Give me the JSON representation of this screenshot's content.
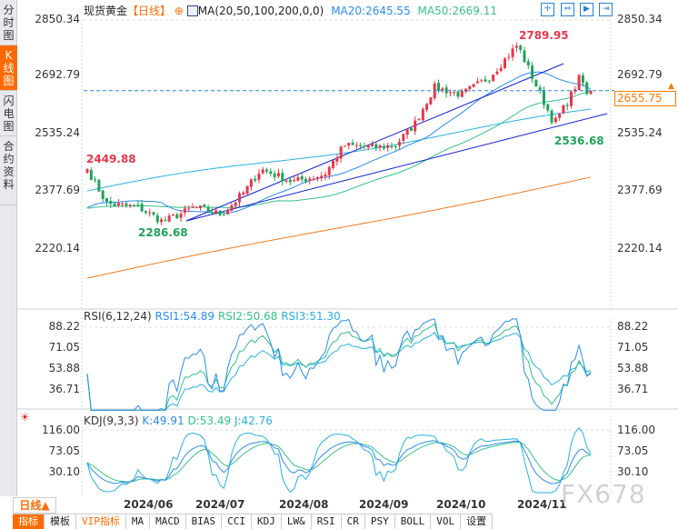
{
  "sidebar": {
    "tabs": [
      {
        "label": "分时图"
      },
      {
        "label": "K线图",
        "active": true
      },
      {
        "label": "闪电图"
      },
      {
        "label": "合约资料"
      }
    ]
  },
  "header": {
    "symbol": "现货黄金",
    "period": "【日线】",
    "ma_label": "MA(20,50,100,200,0,0)",
    "ma20": "MA20:2645.55",
    "ma50": "MA50:2669.11"
  },
  "toolbar_icons": [
    "crosshair-icon",
    "zoom-in-icon",
    "play-icon",
    "exit-icon"
  ],
  "price_axis": [
    "2850.34",
    "2692.79",
    "2535.24",
    "2377.69",
    "2220.14"
  ],
  "current_price": "2655.75",
  "annotations": {
    "start_high": "2449.88",
    "low1": "2286.68",
    "high": "2789.95",
    "low2": "2536.68"
  },
  "rsi": {
    "label": "RSI(6,12,24)",
    "rsi1": "RSI1:54.89",
    "rsi2": "RSI2:50.68",
    "rsi3": "RSI3:51.30",
    "axis": [
      "88.22",
      "71.05",
      "53.88",
      "36.71"
    ]
  },
  "kdj": {
    "label": "KDJ(9,3,3)",
    "k": "K:49.91",
    "d": "D:53.49",
    "j": "J:42.76",
    "axis": [
      "116.00",
      "73.05",
      "30.10"
    ]
  },
  "period_button": "日线▲",
  "dates": [
    "2024/06",
    "2024/07",
    "2024/08",
    "2024/09",
    "2024/10",
    "2024/11"
  ],
  "indicators": [
    {
      "label": "指标",
      "active": true
    },
    {
      "label": "模板"
    },
    {
      "label": "VIP指标",
      "vip": true
    },
    {
      "label": "MA"
    },
    {
      "label": "MACD"
    },
    {
      "label": "BIAS"
    },
    {
      "label": "CCI"
    },
    {
      "label": "KDJ"
    },
    {
      "label": "LW&"
    },
    {
      "label": "RSI"
    },
    {
      "label": "CR"
    },
    {
      "label": "PSY"
    },
    {
      "label": "BOLL"
    },
    {
      "label": "VOL"
    },
    {
      "label": "设置"
    }
  ],
  "watermark": "FX678",
  "colors": {
    "up": "#e8364a",
    "down": "#1fa35a",
    "ma20": "#2a8cf0",
    "ma50": "#35c08a",
    "ma100": "#2ab0e0",
    "ma200": "#f07a20",
    "trend": "#1020d0",
    "accent": "#ff6a00"
  },
  "chart_data": {
    "type": "candlestick",
    "price_range": [
      2220.14,
      2850.34
    ],
    "close_keypoints": [
      [
        "2024/05/07",
        2440
      ],
      [
        "2024/05/15",
        2345
      ],
      [
        "2024/05/28",
        2335
      ],
      [
        "2024/06/07",
        2295
      ],
      [
        "2024/06/20",
        2335
      ],
      [
        "2024/07/01",
        2315
      ],
      [
        "2024/07/10",
        2375
      ],
      [
        "2024/07/17",
        2440
      ],
      [
        "2024/07/30",
        2405
      ],
      [
        "2024/08/12",
        2425
      ],
      [
        "2024/08/20",
        2505
      ],
      [
        "2024/09/02",
        2500
      ],
      [
        "2024/09/10",
        2505
      ],
      [
        "2024/09/18",
        2565
      ],
      [
        "2024/09/26",
        2665
      ],
      [
        "2024/10/07",
        2645
      ],
      [
        "2024/10/18",
        2690
      ],
      [
        "2024/10/24",
        2735
      ],
      [
        "2024/10/30",
        2782
      ],
      [
        "2024/11/06",
        2680
      ],
      [
        "2024/11/14",
        2565
      ],
      [
        "2024/11/20",
        2630
      ],
      [
        "2024/11/25",
        2700
      ],
      [
        "2024/11/27",
        2640
      ],
      [
        "2024/11/29",
        2655.75
      ]
    ]
  }
}
